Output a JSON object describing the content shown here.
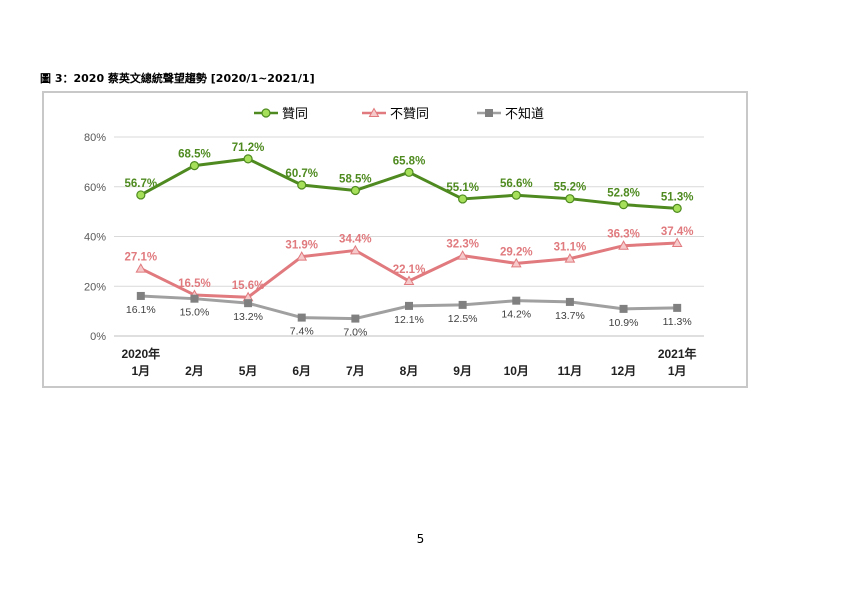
{
  "figure_title": "圖 3：2020 蔡英文總統聲望趨勢  [2020/1~2021/1]",
  "page_number": "5",
  "colors": {
    "approve": "#4e8a1f",
    "approve_marker": "#a6e05a",
    "disapprove": "#e07a7e",
    "unknown": "#a0a0a0",
    "grid": "#d9d9d9"
  },
  "chart_data": {
    "type": "line",
    "title": "",
    "xlabel": "",
    "ylabel": "",
    "ylim": [
      0,
      80
    ],
    "yticks": [
      "0%",
      "20%",
      "40%",
      "60%",
      "80%"
    ],
    "categories": [
      {
        "line1": "2020年",
        "line2": "1月"
      },
      {
        "line1": "",
        "line2": "2月"
      },
      {
        "line1": "",
        "line2": "5月"
      },
      {
        "line1": "",
        "line2": "6月"
      },
      {
        "line1": "",
        "line2": "7月"
      },
      {
        "line1": "",
        "line2": "8月"
      },
      {
        "line1": "",
        "line2": "9月"
      },
      {
        "line1": "",
        "line2": "10月"
      },
      {
        "line1": "",
        "line2": "11月"
      },
      {
        "line1": "",
        "line2": "12月"
      },
      {
        "line1": "2021年",
        "line2": "1月"
      }
    ],
    "legend_position": "top",
    "series": [
      {
        "name": "贊同",
        "marker": "circle",
        "color": "#4e8a1f",
        "label_position": "above",
        "values": [
          56.7,
          68.5,
          71.2,
          60.7,
          58.5,
          65.8,
          55.1,
          56.6,
          55.2,
          52.8,
          51.3
        ],
        "labels": [
          "56.7%",
          "68.5%",
          "71.2%",
          "60.7%",
          "58.5%",
          "65.8%",
          "55.1%",
          "56.6%",
          "55.2%",
          "52.8%",
          "51.3%"
        ]
      },
      {
        "name": "不贊同",
        "marker": "triangle",
        "color": "#e07a7e",
        "label_position": "above",
        "values": [
          27.1,
          16.5,
          15.6,
          31.9,
          34.4,
          22.1,
          32.3,
          29.2,
          31.1,
          36.3,
          37.4
        ],
        "labels": [
          "27.1%",
          "16.5%",
          "15.6%",
          "31.9%",
          "34.4%",
          "22.1%",
          "32.3%",
          "29.2%",
          "31.1%",
          "36.3%",
          "37.4%"
        ]
      },
      {
        "name": "不知道",
        "marker": "square",
        "color": "#a0a0a0",
        "label_position": "below",
        "values": [
          16.1,
          15.0,
          13.2,
          7.4,
          7.0,
          12.1,
          12.5,
          14.2,
          13.7,
          10.9,
          11.3
        ],
        "labels": [
          "16.1%",
          "15.0%",
          "13.2%",
          "7.4%",
          "7.0%",
          "12.1%",
          "12.5%",
          "14.2%",
          "13.7%",
          "10.9%",
          "11.3%"
        ]
      }
    ]
  }
}
